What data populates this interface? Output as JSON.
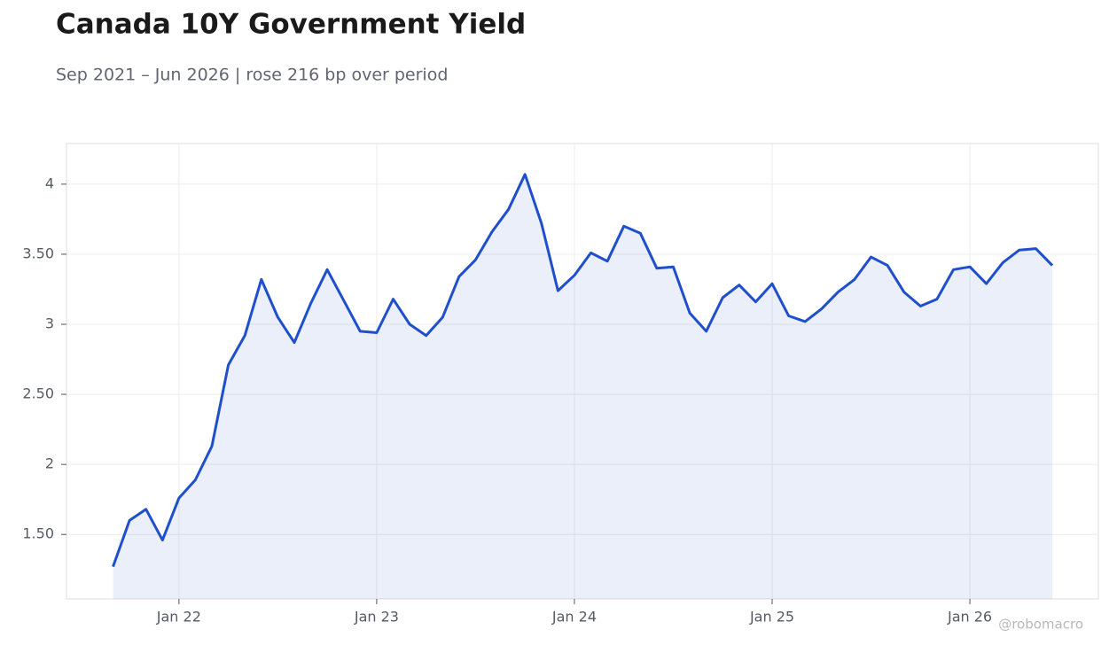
{
  "chart_data": {
    "type": "line",
    "title": "Canada 10Y Government Yield",
    "subtitle": "Sep 2021 – Jun 2026 | rose 216 bp over period",
    "watermark": "@robomacro",
    "x": [
      "2021-09",
      "2021-10",
      "2021-11",
      "2021-12",
      "2022-01",
      "2022-02",
      "2022-03",
      "2022-04",
      "2022-05",
      "2022-06",
      "2022-07",
      "2022-08",
      "2022-09",
      "2022-10",
      "2022-11",
      "2022-12",
      "2023-01",
      "2023-02",
      "2023-03",
      "2023-04",
      "2023-05",
      "2023-06",
      "2023-07",
      "2023-08",
      "2023-09",
      "2023-10",
      "2023-11",
      "2023-12",
      "2024-01",
      "2024-02",
      "2024-03",
      "2024-04",
      "2024-05",
      "2024-06",
      "2024-07",
      "2024-08",
      "2024-09",
      "2024-10",
      "2024-11",
      "2024-12",
      "2025-01",
      "2025-02",
      "2025-03",
      "2025-04",
      "2025-05",
      "2025-06",
      "2025-07",
      "2025-08",
      "2025-09",
      "2025-10",
      "2025-11",
      "2025-12",
      "2026-01",
      "2026-02",
      "2026-03",
      "2026-04",
      "2026-05",
      "2026-06"
    ],
    "series": [
      {
        "name": "Canada 10Y",
        "color": "#1f4fcc",
        "values": [
          1.27,
          1.6,
          1.68,
          1.46,
          1.76,
          1.89,
          2.13,
          2.71,
          2.92,
          3.32,
          3.05,
          2.87,
          3.15,
          3.39,
          3.17,
          2.95,
          2.94,
          3.18,
          3.0,
          2.92,
          3.05,
          3.34,
          3.46,
          3.66,
          3.82,
          4.07,
          3.72,
          3.24,
          3.35,
          3.51,
          3.45,
          3.7,
          3.65,
          3.4,
          3.41,
          3.08,
          2.95,
          3.19,
          3.28,
          3.16,
          3.29,
          3.06,
          3.02,
          3.11,
          3.23,
          3.32,
          3.48,
          3.42,
          3.23,
          3.13,
          3.18,
          3.39,
          3.41,
          3.29,
          3.44,
          3.53,
          3.54,
          3.42
        ]
      }
    ],
    "xticks": [
      {
        "value": "2022-01",
        "label": "Jan 22"
      },
      {
        "value": "2023-01",
        "label": "Jan 23"
      },
      {
        "value": "2024-01",
        "label": "Jan 24"
      },
      {
        "value": "2025-01",
        "label": "Jan 25"
      },
      {
        "value": "2026-01",
        "label": "Jan 26"
      }
    ],
    "ylim": [
      1.04,
      4.29
    ],
    "yticks": [
      {
        "value": 1.5,
        "label": "1.50"
      },
      2,
      {
        "value": 2.5,
        "label": "2.50"
      },
      3,
      {
        "value": 3.5,
        "label": "3.50"
      },
      4
    ],
    "grid": true
  }
}
